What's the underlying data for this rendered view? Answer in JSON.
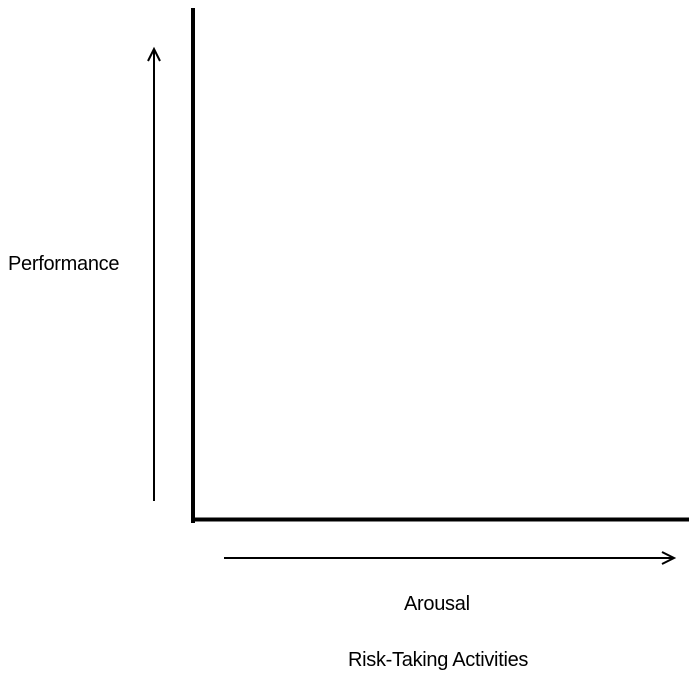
{
  "diagram": {
    "y_axis_label": "Performance",
    "x_axis_label": "Arousal",
    "x_axis_sublabel": "Risk-Taking Activities",
    "line_color": "#000000",
    "background_color": "#ffffff"
  }
}
